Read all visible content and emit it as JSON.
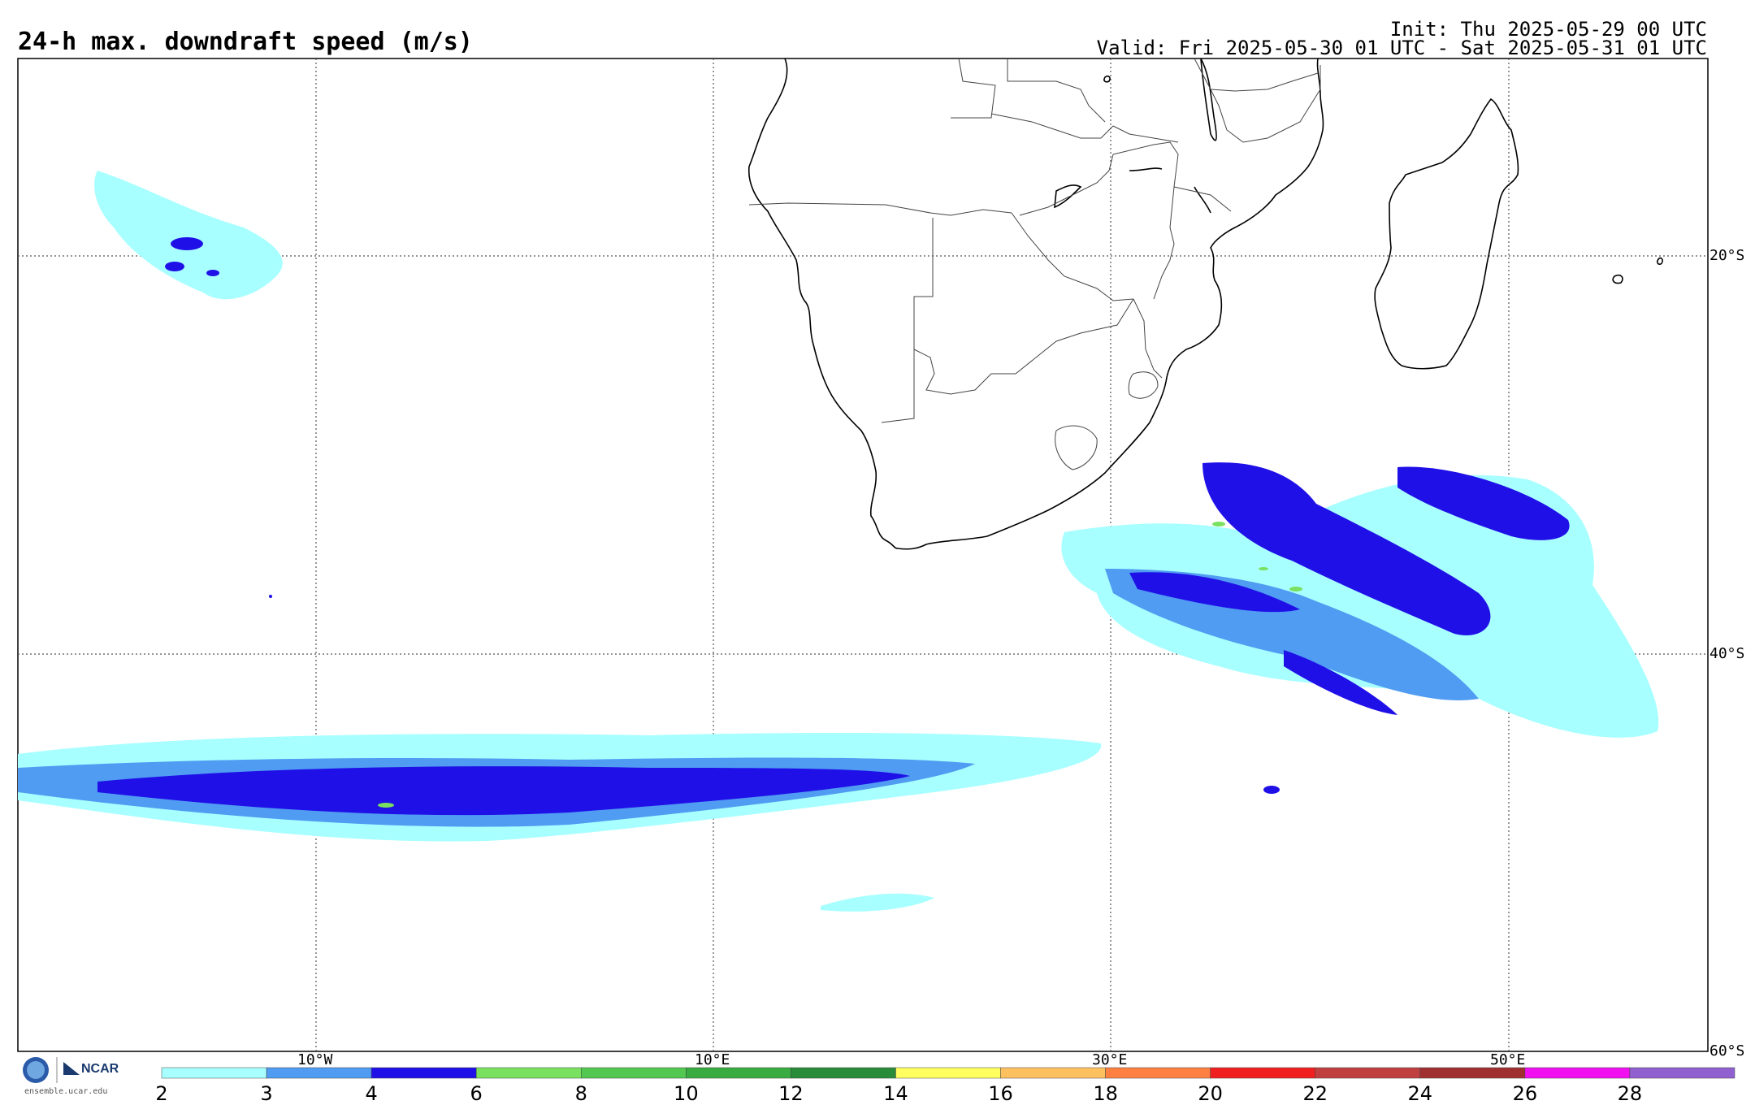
{
  "title": "24-h max. downdraft speed (m/s)",
  "init": "Init: Thu 2025-05-29 00 UTC",
  "valid": "Valid: Fri 2025-05-30 01 UTC - Sat 2025-05-31 01 UTC",
  "lon_labels": [
    "10°W",
    "10°E",
    "30°E",
    "50°E"
  ],
  "lat_labels": [
    "20°S",
    "40°S",
    "60°S"
  ],
  "logo": {
    "org": "NCAR",
    "url": "ensemble.ucar.edu"
  },
  "colorbar": {
    "ticks": [
      "2",
      "3",
      "4",
      "6",
      "8",
      "10",
      "12",
      "14",
      "16",
      "18",
      "20",
      "22",
      "24",
      "26",
      "28"
    ],
    "colors": [
      "#a8ffff",
      "#4f9cf2",
      "#2010e8",
      "#7ae060",
      "#52c850",
      "#38ac40",
      "#288c38",
      "#ffff60",
      "#ffc060",
      "#ff8040",
      "#f02020",
      "#c04040",
      "#a03030",
      "#f010f0",
      "#9060d0"
    ]
  }
}
